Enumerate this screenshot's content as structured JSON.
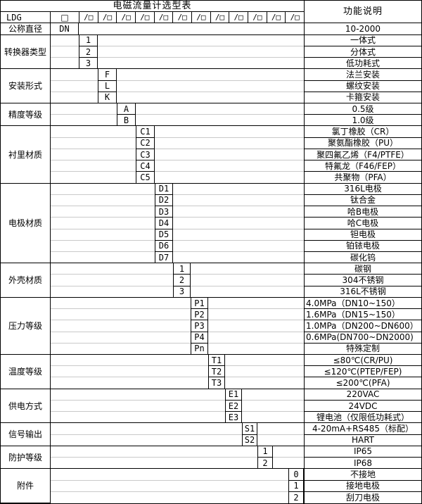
{
  "title": "电磁流量计选型表",
  "desc_header": "功能说明",
  "model_row": {
    "prefix": "LDG",
    "first_box": "□",
    "slash_box": "/□",
    "slash_box_count": 12
  },
  "groups": [
    {
      "id": "nominal-diameter",
      "label": "公称直径",
      "rows": [
        {
          "code": "DN",
          "desc": "10-2000"
        }
      ]
    },
    {
      "id": "converter-type",
      "label": "转换器类型",
      "rows": [
        {
          "code": "1",
          "desc": "一体式"
        },
        {
          "code": "2",
          "desc": "分体式"
        },
        {
          "code": "3",
          "desc": "低功耗式"
        }
      ]
    },
    {
      "id": "installation-type",
      "label": "安装形式",
      "rows": [
        {
          "code": "F",
          "desc": "法兰安装"
        },
        {
          "code": "L",
          "desc": "螺纹安装"
        },
        {
          "code": "K",
          "desc": "卡箍安装"
        }
      ]
    },
    {
      "id": "accuracy-class",
      "label": "精度等级",
      "rows": [
        {
          "code": "A",
          "desc": "0.5级"
        },
        {
          "code": "B",
          "desc": "1.0级"
        }
      ]
    },
    {
      "id": "lining-material",
      "label": "衬里材质",
      "rows": [
        {
          "code": "C1",
          "desc": "氯丁橡胶（CR）"
        },
        {
          "code": "C2",
          "desc": "聚氨酯橡胶（PU）"
        },
        {
          "code": "C3",
          "desc": "聚四氟乙烯（F4/PTFE）"
        },
        {
          "code": "C4",
          "desc": "特氟龙（F46/FEP）"
        },
        {
          "code": "C5",
          "desc": "共聚物（PFA）"
        }
      ]
    },
    {
      "id": "electrode-material",
      "label": "电极材质",
      "rows": [
        {
          "code": "D1",
          "desc": "316L电极"
        },
        {
          "code": "D2",
          "desc": "钛合金"
        },
        {
          "code": "D3",
          "desc": "哈B电极"
        },
        {
          "code": "D4",
          "desc": "哈C电极"
        },
        {
          "code": "D5",
          "desc": "钽电极"
        },
        {
          "code": "D6",
          "desc": "铂铱电极"
        },
        {
          "code": "D7",
          "desc": "碳化钨"
        }
      ]
    },
    {
      "id": "housing-material",
      "label": "外壳材质",
      "rows": [
        {
          "code": "1",
          "desc": "碳钢"
        },
        {
          "code": "2",
          "desc": "304不锈钢"
        },
        {
          "code": "3",
          "desc": "316L不锈钢"
        }
      ]
    },
    {
      "id": "pressure-rating",
      "label": "压力等级",
      "rows": [
        {
          "code": "P1",
          "desc": "4.0MPa（DN10~150）",
          "align": "left"
        },
        {
          "code": "P2",
          "desc": "1.6MPa（DN15~150）",
          "align": "left"
        },
        {
          "code": "P3",
          "desc": "1.0MPa（DN200~DN600）",
          "align": "left"
        },
        {
          "code": "P4",
          "desc": "0.6MPa(DN700~DN2000)",
          "align": "left"
        },
        {
          "code": "Pn",
          "desc": "特殊定制"
        }
      ]
    },
    {
      "id": "temperature-rating",
      "label": "温度等级",
      "rows": [
        {
          "code": "T1",
          "desc": "≤80℃(CR/PU)"
        },
        {
          "code": "T2",
          "desc": "≤120℃(PTEP/FEP)"
        },
        {
          "code": "T3",
          "desc": "≤200℃(PFA)"
        }
      ]
    },
    {
      "id": "power-supply",
      "label": "供电方式",
      "rows": [
        {
          "code": "E1",
          "desc": "220VAC"
        },
        {
          "code": "E2",
          "desc": "24VDC"
        },
        {
          "code": "E3",
          "desc": "锂电池（仅限低功耗式）"
        }
      ]
    },
    {
      "id": "signal-output",
      "label": "信号输出",
      "rows": [
        {
          "code": "S1",
          "desc": "4-20mA+RS485（标配）"
        },
        {
          "code": "S2",
          "desc": "HART"
        }
      ]
    },
    {
      "id": "protection-class",
      "label": "防护等级",
      "rows": [
        {
          "code": "1",
          "desc": "IP65"
        },
        {
          "code": "2",
          "desc": "IP68"
        }
      ]
    },
    {
      "id": "accessories",
      "label": "附件",
      "rows": [
        {
          "code": "0",
          "desc": "不接地"
        },
        {
          "code": "1",
          "desc": "接地电极"
        },
        {
          "code": "2",
          "desc": "刮刀电极"
        }
      ]
    }
  ],
  "colors": {
    "border": "#000000",
    "light_grid": "#c9c9c9",
    "background": "#ffffff",
    "text": "#000000"
  }
}
